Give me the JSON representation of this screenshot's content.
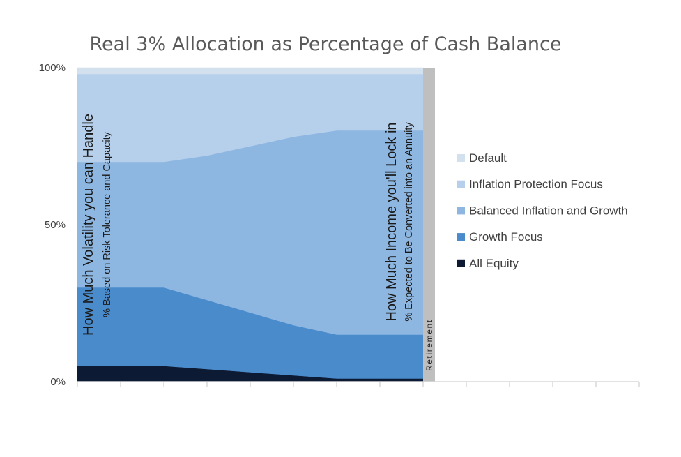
{
  "chart_data": {
    "type": "area",
    "stacked": true,
    "title": "Real 3% Allocation as Percentage of Cash Balance",
    "x": [
      0,
      1,
      2,
      3,
      4,
      5,
      6,
      7,
      8
    ],
    "xlim": [
      0,
      13
    ],
    "ylim": [
      0,
      100
    ],
    "y_tick_labels": [
      "0%",
      "50%",
      "100%"
    ],
    "y_tick_values": [
      0,
      50,
      100
    ],
    "grid": false,
    "legend_position": "right",
    "series": [
      {
        "name": "All Equity",
        "color": "#0d1a33",
        "values": [
          5,
          5,
          5,
          4,
          3,
          2,
          1,
          1,
          1
        ]
      },
      {
        "name": "Growth Focus",
        "color": "#4a8bcb",
        "values": [
          25,
          25,
          25,
          22,
          19,
          16,
          14,
          14,
          14
        ]
      },
      {
        "name": "Balanced Inflation and Growth",
        "color": "#8db6e1",
        "values": [
          40,
          40,
          40,
          46,
          53,
          60,
          65,
          65,
          65
        ]
      },
      {
        "name": "Inflation Protection Focus",
        "color": "#b6d0eb",
        "values": [
          28,
          28,
          28,
          26,
          23,
          20,
          18,
          18,
          18
        ]
      },
      {
        "name": "Default",
        "color": "#d3e0ee",
        "values": [
          2,
          2,
          2,
          2,
          2,
          2,
          2,
          2,
          2
        ]
      }
    ],
    "retirement_bar": {
      "x": 8,
      "value": 100,
      "label": "Retirement",
      "color": "#bfbfbf"
    },
    "annotations": [
      {
        "main": "How Much Volatility you can Handle",
        "sub": "% Based on Risk Tolerance and Capacity"
      },
      {
        "main": "How Much Income you'll Lock in",
        "sub": "% Expected to Be Converted into an Annuity"
      }
    ]
  }
}
